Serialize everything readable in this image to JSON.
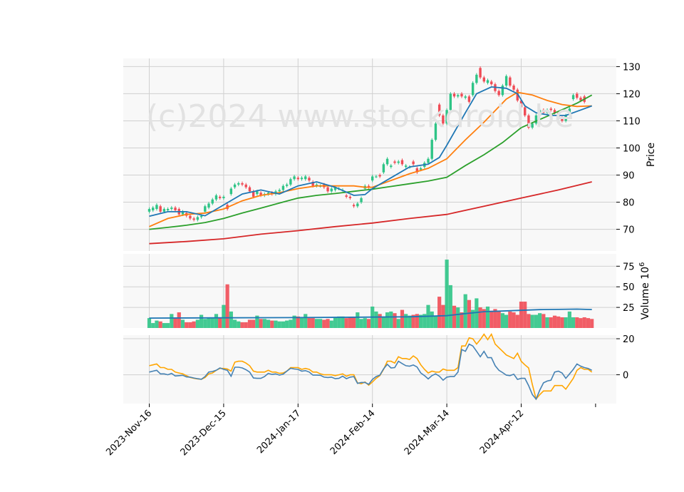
{
  "watermark": "(c)2024 www.stockdroid.be",
  "colors": {
    "up": "#2ec486",
    "down": "#ef4b55",
    "ma_short": "#1f77b4",
    "ma_mid": "#ff7f0e",
    "ma_long": "#2ca02c",
    "ma_200": "#d62728",
    "vol_ma": "#1f77b4",
    "osc_fast": "#4682b4",
    "osc_slow": "#ffa500"
  },
  "chart_data": [
    {
      "type": "candlestick",
      "ylabel": "Price",
      "ylim": [
        62,
        133
      ],
      "yticks": [
        70,
        80,
        90,
        100,
        110,
        120,
        130
      ],
      "xticks": [
        {
          "i": 0,
          "label": "2023-Nov-16"
        },
        {
          "i": 20,
          "label": "2023-Dec-15"
        },
        {
          "i": 40,
          "label": "2024-Jan-17"
        },
        {
          "i": 60,
          "label": "2024-Feb-14"
        },
        {
          "i": 80,
          "label": "2024-Mar-14"
        },
        {
          "i": 100,
          "label": "2024-Apr-12"
        }
      ],
      "grid": true,
      "candles": [
        [
          76.5,
          77.5
        ],
        [
          77,
          78
        ],
        [
          77.5,
          79
        ],
        [
          78.5,
          76.5
        ],
        [
          76.5,
          77.5
        ],
        [
          77,
          77.5
        ],
        [
          77.5,
          78
        ],
        [
          78,
          77
        ],
        [
          77.5,
          75.5
        ],
        [
          75.5,
          76.5
        ],
        [
          76,
          75
        ],
        [
          75,
          74
        ],
        [
          74,
          73.5
        ],
        [
          73.5,
          74.5
        ],
        [
          74.5,
          75
        ],
        [
          76.5,
          78.5
        ],
        [
          78,
          79.5
        ],
        [
          79.5,
          81
        ],
        [
          81,
          82.5
        ],
        [
          82,
          81.5
        ],
        [
          81.5,
          82
        ],
        [
          79,
          77.5
        ],
        [
          83,
          85
        ],
        [
          85.5,
          86.5
        ],
        [
          86.5,
          87
        ],
        [
          87,
          86.5
        ],
        [
          86.5,
          85.5
        ],
        [
          85.5,
          84
        ],
        [
          84,
          82
        ],
        [
          83,
          84
        ],
        [
          83.5,
          82.5
        ],
        [
          82.5,
          83
        ],
        [
          83,
          83.5
        ],
        [
          83.5,
          83
        ],
        [
          83,
          84
        ],
        [
          84,
          84.5
        ],
        [
          84.5,
          86
        ],
        [
          86,
          86.5
        ],
        [
          86.5,
          88.5
        ],
        [
          88.5,
          89.5
        ],
        [
          89,
          88.5
        ],
        [
          88.5,
          89
        ],
        [
          88.5,
          89.5
        ],
        [
          89,
          88
        ],
        [
          87.5,
          86
        ],
        [
          86,
          86.5
        ],
        [
          86,
          86
        ],
        [
          86.5,
          85.5
        ],
        [
          85.5,
          84
        ],
        [
          84,
          85
        ],
        [
          84.5,
          85.5
        ],
        [
          85,
          85
        ],
        [
          84.5,
          84.5
        ],
        [
          82.5,
          82
        ],
        [
          82,
          81.5
        ],
        [
          79,
          78.5
        ],
        [
          78.5,
          79.5
        ],
        [
          80,
          81.5
        ],
        [
          85,
          86
        ],
        [
          86,
          85.5
        ],
        [
          88,
          89.5
        ],
        [
          89.5,
          89.5
        ],
        [
          90,
          89.5
        ],
        [
          91,
          94
        ],
        [
          94,
          96
        ],
        [
          93,
          93.5
        ],
        [
          95,
          94.5
        ],
        [
          94.5,
          95
        ],
        [
          95.5,
          94
        ],
        [
          93,
          93.5
        ],
        [
          93,
          93
        ],
        [
          95,
          94
        ],
        [
          92.5,
          91
        ],
        [
          92,
          92.5
        ],
        [
          93,
          94.5
        ],
        [
          94.5,
          96
        ],
        [
          96,
          103
        ],
        [
          103,
          109
        ],
        [
          116,
          112
        ],
        [
          112,
          109
        ],
        [
          109,
          114
        ],
        [
          114,
          120
        ],
        [
          120,
          119
        ],
        [
          119,
          119.5
        ],
        [
          120,
          119
        ],
        [
          118.5,
          119
        ],
        [
          119,
          117
        ],
        [
          119.5,
          124
        ],
        [
          124,
          127
        ],
        [
          129.5,
          126
        ],
        [
          126,
          124.5
        ],
        [
          124,
          125
        ],
        [
          124.5,
          123.5
        ],
        [
          123.5,
          121
        ],
        [
          121,
          119.5
        ],
        [
          119.5,
          123
        ],
        [
          123,
          126.5
        ],
        [
          126,
          123
        ],
        [
          123,
          121.5
        ],
        [
          121.5,
          117.5
        ],
        [
          117.5,
          115
        ],
        [
          115,
          112
        ],
        [
          112,
          107.5
        ],
        [
          107.5,
          109
        ],
        [
          109,
          112
        ],
        [
          112,
          114
        ],
        [
          114,
          113
        ],
        [
          113,
          114
        ],
        [
          114.5,
          114
        ],
        [
          114,
          113
        ],
        [
          113,
          111.5
        ],
        [
          111,
          110
        ],
        [
          110,
          112
        ],
        [
          113,
          114.5
        ],
        [
          118,
          119.5
        ],
        [
          120,
          118.5
        ],
        [
          118.5,
          117.5
        ],
        [
          119,
          117
        ]
      ],
      "ma_short": [
        [
          0,
          74.8
        ],
        [
          5,
          76.5
        ],
        [
          10,
          76.5
        ],
        [
          15,
          75
        ],
        [
          20,
          79
        ],
        [
          25,
          83
        ],
        [
          30,
          84.5
        ],
        [
          35,
          83
        ],
        [
          40,
          86
        ],
        [
          45,
          87.5
        ],
        [
          50,
          85.5
        ],
        [
          55,
          82.5
        ],
        [
          58,
          82.8
        ],
        [
          60,
          85
        ],
        [
          65,
          89
        ],
        [
          70,
          93
        ],
        [
          75,
          94
        ],
        [
          78,
          96.5
        ],
        [
          80,
          101
        ],
        [
          85,
          113
        ],
        [
          88,
          120
        ],
        [
          92,
          122.5
        ],
        [
          96,
          122
        ],
        [
          99,
          120
        ],
        [
          101,
          115.5
        ],
        [
          104,
          113
        ],
        [
          108,
          112
        ],
        [
          112,
          112
        ],
        [
          116,
          114
        ],
        [
          119,
          115.5
        ]
      ],
      "ma_mid": [
        [
          0,
          71
        ],
        [
          5,
          74
        ],
        [
          10,
          75.5
        ],
        [
          15,
          76
        ],
        [
          20,
          77.5
        ],
        [
          25,
          80.5
        ],
        [
          30,
          82.5
        ],
        [
          35,
          83.5
        ],
        [
          40,
          85
        ],
        [
          45,
          86
        ],
        [
          50,
          86
        ],
        [
          55,
          86
        ],
        [
          58,
          85.5
        ],
        [
          60,
          85.5
        ],
        [
          65,
          88
        ],
        [
          70,
          90.5
        ],
        [
          75,
          92.5
        ],
        [
          80,
          96
        ],
        [
          85,
          103
        ],
        [
          90,
          109.5
        ],
        [
          96,
          118
        ],
        [
          99,
          120.5
        ],
        [
          103,
          119.5
        ],
        [
          107,
          117.5
        ],
        [
          111,
          116
        ],
        [
          115,
          115.3
        ],
        [
          119,
          115.5
        ]
      ],
      "ma_long": [
        [
          0,
          70
        ],
        [
          5,
          70.7
        ],
        [
          10,
          71.5
        ],
        [
          15,
          72.5
        ],
        [
          20,
          74
        ],
        [
          25,
          76
        ],
        [
          30,
          77.8
        ],
        [
          35,
          79.7
        ],
        [
          40,
          81.5
        ],
        [
          45,
          82.5
        ],
        [
          50,
          83.2
        ],
        [
          55,
          84
        ],
        [
          60,
          84.8
        ],
        [
          65,
          85.8
        ],
        [
          70,
          86.8
        ],
        [
          75,
          87.8
        ],
        [
          80,
          89.2
        ],
        [
          85,
          93.5
        ],
        [
          90,
          97.5
        ],
        [
          95,
          102
        ],
        [
          100,
          107.5
        ],
        [
          105,
          110.5
        ],
        [
          110,
          113.5
        ],
        [
          115,
          116.5
        ],
        [
          119,
          119.5
        ]
      ],
      "ma_200": [
        [
          0,
          64.7
        ],
        [
          10,
          65.5
        ],
        [
          20,
          66.5
        ],
        [
          30,
          68.2
        ],
        [
          40,
          69.5
        ],
        [
          50,
          71
        ],
        [
          60,
          72.3
        ],
        [
          70,
          74
        ],
        [
          80,
          75.5
        ],
        [
          90,
          78.5
        ],
        [
          100,
          81.5
        ],
        [
          110,
          84.5
        ],
        [
          119,
          87.5
        ]
      ]
    },
    {
      "type": "bar",
      "ylabel": "Volume",
      "ylabel_exponent": "10^6",
      "ylim": [
        0,
        90
      ],
      "yticks": [
        25,
        50,
        75
      ],
      "volumes": [
        12,
        6,
        9,
        8,
        6,
        6,
        17,
        12,
        19,
        10,
        7,
        7,
        8,
        10,
        16,
        11,
        13,
        12,
        17,
        12,
        28,
        53,
        20,
        10,
        8,
        7,
        7,
        10,
        10,
        15,
        11,
        11,
        10,
        9,
        9,
        8,
        8,
        9,
        10,
        15,
        14,
        13,
        17,
        12,
        12,
        11,
        11,
        10,
        11,
        9,
        13,
        14,
        14,
        12,
        13,
        13,
        19,
        11,
        12,
        11,
        26,
        20,
        17,
        13,
        19,
        20,
        18,
        11,
        22,
        17,
        15,
        16,
        17,
        16,
        17,
        28,
        20,
        14,
        38,
        28,
        83,
        52,
        27,
        25,
        19,
        41,
        34,
        22,
        36,
        25,
        23,
        26,
        21,
        23,
        21,
        18,
        16,
        20,
        19,
        16,
        32,
        32,
        17,
        16,
        16,
        18,
        17,
        13,
        13,
        15,
        14,
        13,
        13,
        20,
        13,
        13,
        12,
        13,
        12,
        11
      ],
      "vol_ma": [
        [
          0,
          12
        ],
        [
          20,
          12.4
        ],
        [
          40,
          12.6
        ],
        [
          60,
          13.2
        ],
        [
          70,
          13.6
        ],
        [
          80,
          15
        ],
        [
          85,
          17.5
        ],
        [
          90,
          19.8
        ],
        [
          95,
          20.6
        ],
        [
          100,
          21.5
        ],
        [
          105,
          22.3
        ],
        [
          110,
          22.6
        ],
        [
          115,
          22.9
        ],
        [
          119,
          22.4
        ]
      ]
    },
    {
      "type": "line",
      "ylim": [
        -16,
        22
      ],
      "yticks": [
        0,
        20
      ],
      "fast": [
        1.5,
        2,
        2.5,
        0.5,
        0.5,
        0,
        0.8,
        -0.7,
        -0.5,
        -0.3,
        -1.2,
        -1.3,
        -1.8,
        -2.2,
        -2.5,
        -1,
        1.5,
        1.8,
        2.5,
        3.8,
        3,
        2.5,
        -0.8,
        4.2,
        4.2,
        3.8,
        2.8,
        1.5,
        -1.8,
        -2,
        -2,
        -1,
        0.8,
        0.2,
        0.5,
        -0.2,
        0.3,
        2,
        3.6,
        3.2,
        3,
        2,
        2.3,
        1.5,
        -0.2,
        -0.2,
        -0.3,
        -1.3,
        -1.5,
        -1.3,
        -2.2,
        -2,
        -0.8,
        -2.2,
        -1.3,
        -1,
        -4.8,
        -4.3,
        -4.3,
        -5.3,
        -2.6,
        -1,
        -0.2,
        3.3,
        5.8,
        3.8,
        4,
        7.5,
        6.2,
        5,
        4.8,
        5.4,
        4.3,
        1,
        -0.5,
        -2.3,
        -0.5,
        0.5,
        -0.8,
        -3,
        -1.3,
        -1,
        -1,
        1.5,
        14,
        13,
        17,
        16,
        13,
        10,
        13,
        9.5,
        9.5,
        5,
        2.5,
        1.2,
        -0.2,
        -0.5,
        0.3,
        -2.6,
        -2,
        -2,
        -6,
        -11,
        -13.5,
        -8.5,
        -4.5,
        -3.5,
        -3,
        1.5,
        2,
        1,
        -2,
        0.5,
        3,
        6,
        4.8,
        4,
        3.5,
        2.5
      ],
      "slow": [
        5,
        5.5,
        6,
        4,
        4,
        3,
        3,
        1.5,
        1,
        0.5,
        -0.5,
        -1.5,
        -2,
        -2.3,
        -2.5,
        -1.5,
        0.5,
        1,
        2.5,
        3.5,
        3.5,
        3.2,
        2,
        7,
        7.5,
        7.5,
        6.5,
        5,
        2,
        1.5,
        1.5,
        1.5,
        2.5,
        1.5,
        1.5,
        0.8,
        1,
        2,
        4,
        4,
        4,
        3,
        3.5,
        3,
        1.5,
        1.5,
        0.5,
        0,
        0,
        0,
        -0.5,
        0,
        0.5,
        -0.8,
        0,
        0,
        -4.5,
        -5,
        -4,
        -5.8,
        -4,
        -2,
        -0.5,
        3,
        7.5,
        7.5,
        6.5,
        10,
        9,
        9,
        8.5,
        10.5,
        9,
        5.5,
        3,
        1,
        2,
        1.5,
        1.5,
        3.2,
        2.5,
        2.5,
        2.5,
        4,
        16,
        16,
        20.5,
        20,
        17,
        19.5,
        22.5,
        19.5,
        22.5,
        17,
        15,
        13,
        11,
        10,
        9,
        12,
        7.5,
        5.5,
        3.8,
        -5.5,
        -13.5,
        -11,
        -9,
        -9,
        -9,
        -6,
        -6,
        -6,
        -8,
        -5,
        -2,
        2.5,
        4,
        3,
        3,
        1.5
      ]
    }
  ]
}
